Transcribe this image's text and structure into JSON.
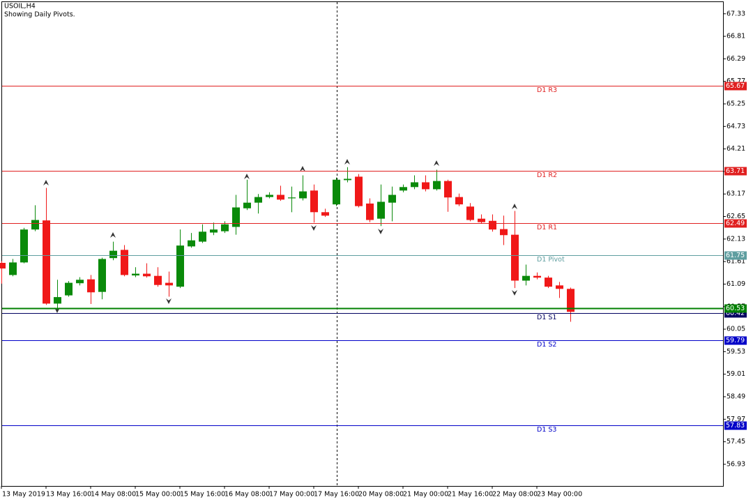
{
  "chart_data": {
    "type": "candlestick",
    "title": "USOIL,H4",
    "subtitle": "Showing Daily Pivots.",
    "categories": [
      "13 May 2019",
      null,
      null,
      null,
      "13 May 16:00",
      null,
      null,
      null,
      "14 May 08:00",
      null,
      null,
      null,
      "15 May 00:00",
      null,
      null,
      null,
      "15 May 16:00",
      null,
      null,
      null,
      "16 May 08:00",
      null,
      null,
      null,
      "17 May 00:00",
      null,
      null,
      null,
      "17 May 16:00",
      null,
      null,
      null,
      "20 May 08:00",
      null,
      null,
      null,
      "21 May 00:00",
      null,
      null,
      null,
      "21 May 16:00",
      null,
      null,
      null,
      "22 May 08:00",
      null,
      null,
      null,
      "23 May 00:00",
      null,
      null,
      null
    ],
    "open": [
      61.58,
      61.3,
      61.59,
      62.35,
      62.56,
      60.64,
      60.83,
      61.11,
      61.2,
      60.91,
      61.69,
      61.88,
      61.29,
      61.33,
      61.28,
      61.12,
      61.03,
      61.96,
      62.07,
      62.28,
      62.31,
      62.41,
      62.84,
      62.97,
      63.1,
      63.15,
      63.07,
      63.07,
      63.25,
      62.75,
      62.93,
      63.49,
      63.57,
      62.95,
      62.6,
      62.97,
      63.25,
      63.33,
      63.44,
      63.28,
      63.47,
      63.1,
      62.88,
      62.6,
      62.55,
      62.36,
      62.23,
      61.17,
      61.28,
      61.24,
      61.06,
      60.98
    ],
    "high": [
      61.62,
      61.67,
      62.39,
      62.91,
      63.31,
      61.19,
      61.16,
      61.25,
      61.3,
      61.7,
      62.07,
      61.99,
      61.48,
      61.57,
      61.48,
      61.38,
      62.35,
      62.27,
      62.47,
      62.51,
      62.54,
      63.15,
      63.5,
      63.17,
      63.21,
      63.36,
      63.34,
      63.6,
      63.39,
      62.83,
      63.55,
      63.79,
      63.63,
      63.07,
      63.39,
      63.34,
      63.39,
      63.6,
      63.6,
      63.73,
      63.5,
      63.18,
      62.96,
      62.7,
      62.7,
      62.67,
      62.78,
      61.54,
      61.36,
      61.28,
      61.14,
      61.01
    ],
    "low": [
      61.1,
      61.27,
      61.57,
      62.31,
      60.61,
      60.5,
      60.8,
      61.06,
      60.63,
      60.74,
      61.64,
      61.27,
      61.25,
      61.24,
      61.03,
      60.8,
      61.0,
      61.93,
      62.04,
      62.22,
      62.27,
      62.23,
      62.8,
      62.72,
      63.07,
      63.01,
      62.75,
      63.02,
      62.51,
      62.64,
      62.89,
      63.44,
      62.86,
      62.52,
      62.43,
      62.54,
      63.21,
      63.28,
      63.23,
      63.25,
      62.76,
      62.89,
      62.54,
      62.49,
      62.3,
      61.99,
      61.0,
      61.06,
      61.2,
      61.0,
      60.77,
      60.22
    ],
    "close": [
      61.45,
      61.59,
      62.35,
      62.57,
      60.64,
      60.79,
      61.12,
      61.19,
      60.9,
      61.67,
      61.86,
      61.3,
      61.33,
      61.27,
      61.07,
      61.06,
      61.98,
      62.1,
      62.3,
      62.35,
      62.47,
      62.86,
      62.97,
      63.1,
      63.15,
      63.04,
      63.09,
      63.23,
      62.75,
      62.67,
      63.5,
      63.52,
      62.89,
      62.57,
      62.99,
      63.15,
      63.33,
      63.44,
      63.28,
      63.47,
      63.09,
      62.93,
      62.57,
      62.52,
      62.35,
      62.22,
      61.17,
      61.28,
      61.24,
      61.03,
      60.98,
      60.45
    ],
    "up_color": "#0a8a0a",
    "down_color": "#f01818",
    "ylim": [
      56.43,
      67.6
    ],
    "yticks": [
      67.33,
      66.81,
      66.29,
      65.77,
      65.25,
      64.73,
      64.21,
      63.69,
      63.17,
      62.65,
      62.13,
      61.61,
      61.09,
      60.57,
      60.05,
      59.53,
      59.01,
      58.49,
      57.97,
      57.45,
      56.93
    ],
    "levels": [
      {
        "name": "D1 R3",
        "value": 65.67,
        "color": "#e02020"
      },
      {
        "name": "D1 R2",
        "value": 63.71,
        "color": "#e02020"
      },
      {
        "name": "D1 R1",
        "value": 62.49,
        "color": "#e02020"
      },
      {
        "name": "D1 Pivot",
        "value": 61.75,
        "color": "#5f9ea0"
      },
      {
        "name": "D1 S1",
        "value": 60.42,
        "color": "#000060"
      },
      {
        "name": "D1 S2",
        "value": 59.79,
        "color": "#0000c8"
      },
      {
        "name": "D1 S3",
        "value": 57.83,
        "color": "#0000c8"
      }
    ],
    "bid": {
      "value": 60.53,
      "color": "#008000"
    }
  }
}
